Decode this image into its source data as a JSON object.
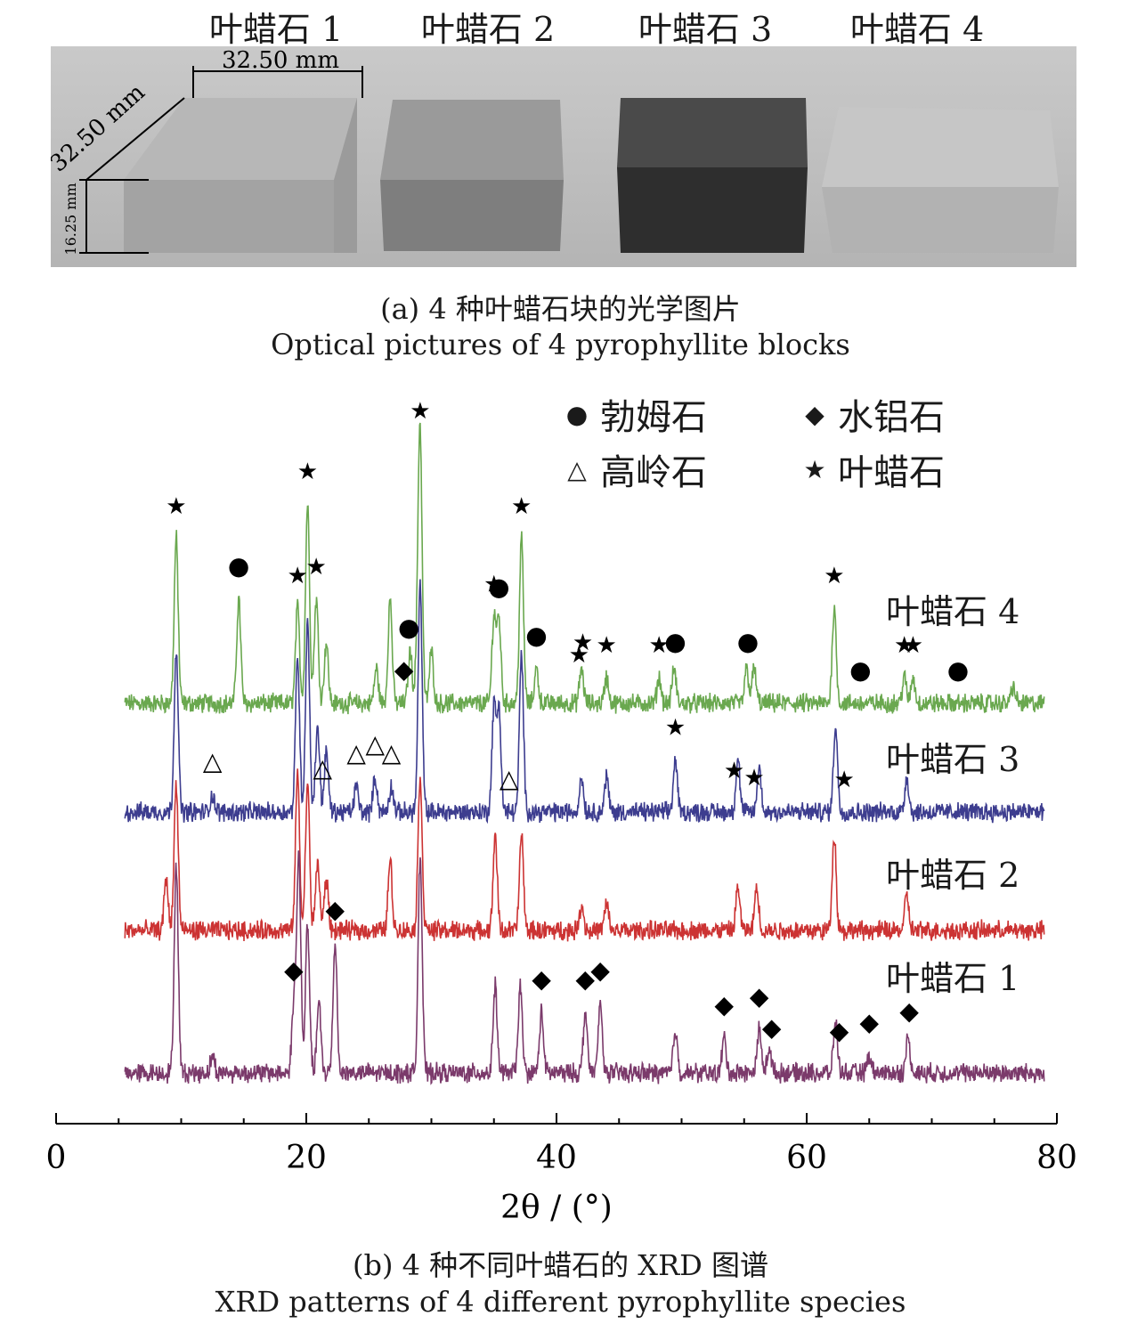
{
  "photo": {
    "block_labels": [
      "叶蜡石 1",
      "叶蜡石 2",
      "叶蜡石 3",
      "叶蜡石 4"
    ],
    "dimension_labels": [
      "32.50 mm",
      "32.50 mm",
      "16.25 mm"
    ],
    "caption_zh": "(a) 4 种叶蜡石块的光学图片",
    "caption_en": "Optical pictures of 4 pyrophyllite blocks",
    "block_colors": [
      "#aeaeae",
      "#8e8e8e",
      "#3a3a3a",
      "#bcbcbc"
    ]
  },
  "chart_data": {
    "type": "line",
    "xlabel": "2θ / (°)",
    "ylabel": "",
    "xlim": [
      0,
      80
    ],
    "x_ticks": [
      "0",
      "20",
      "40",
      "60",
      "80"
    ],
    "x_tick_values": [
      0,
      20,
      40,
      60,
      80
    ],
    "grid": false,
    "legend": [
      {
        "symbol": "●",
        "name": "勃姆石"
      },
      {
        "symbol": "◆",
        "name": "水铝石"
      },
      {
        "symbol": "△",
        "name": "高岭石"
      },
      {
        "symbol": "★",
        "name": "叶蜡石"
      }
    ],
    "series": [
      {
        "name": "叶蜡石 4",
        "color": "#6aa84f",
        "x_range": [
          5.5,
          79
        ],
        "peaks": [
          {
            "x": 9.6,
            "h": 0.95
          },
          {
            "x": 14.6,
            "h": 0.6
          },
          {
            "x": 19.3,
            "h": 0.55
          },
          {
            "x": 20.1,
            "h": 1.15
          },
          {
            "x": 20.8,
            "h": 0.6
          },
          {
            "x": 21.6,
            "h": 0.35
          },
          {
            "x": 25.6,
            "h": 0.2
          },
          {
            "x": 26.7,
            "h": 0.6
          },
          {
            "x": 28.3,
            "h": 0.3
          },
          {
            "x": 28.9,
            "h": 0.25
          },
          {
            "x": 29.1,
            "h": 1.5
          },
          {
            "x": 30.0,
            "h": 0.3
          },
          {
            "x": 35.0,
            "h": 0.5
          },
          {
            "x": 35.4,
            "h": 0.48
          },
          {
            "x": 37.2,
            "h": 0.95
          },
          {
            "x": 38.4,
            "h": 0.2
          },
          {
            "x": 42.0,
            "h": 0.2
          },
          {
            "x": 44.0,
            "h": 0.15
          },
          {
            "x": 48.2,
            "h": 0.15
          },
          {
            "x": 49.4,
            "h": 0.2
          },
          {
            "x": 55.2,
            "h": 0.2
          },
          {
            "x": 55.8,
            "h": 0.2
          },
          {
            "x": 62.2,
            "h": 0.55
          },
          {
            "x": 67.8,
            "h": 0.15
          },
          {
            "x": 68.5,
            "h": 0.15
          },
          {
            "x": 76.5,
            "h": 0.1
          }
        ]
      },
      {
        "name": "叶蜡石 3",
        "color": "#3d3d8f",
        "x_range": [
          5.5,
          79
        ],
        "peaks": [
          {
            "x": 9.6,
            "h": 0.95
          },
          {
            "x": 12.5,
            "h": 0.1
          },
          {
            "x": 19.3,
            "h": 0.9
          },
          {
            "x": 20.1,
            "h": 1.1
          },
          {
            "x": 20.9,
            "h": 0.5
          },
          {
            "x": 21.6,
            "h": 0.35
          },
          {
            "x": 24.0,
            "h": 0.15
          },
          {
            "x": 25.5,
            "h": 0.2
          },
          {
            "x": 26.8,
            "h": 0.15
          },
          {
            "x": 29.1,
            "h": 1.3
          },
          {
            "x": 35.0,
            "h": 0.6
          },
          {
            "x": 35.4,
            "h": 0.6
          },
          {
            "x": 37.2,
            "h": 0.9
          },
          {
            "x": 42.0,
            "h": 0.2
          },
          {
            "x": 44.0,
            "h": 0.2
          },
          {
            "x": 49.5,
            "h": 0.3
          },
          {
            "x": 54.5,
            "h": 0.3
          },
          {
            "x": 56.2,
            "h": 0.25
          },
          {
            "x": 62.3,
            "h": 0.5
          },
          {
            "x": 68.0,
            "h": 0.2
          }
        ]
      },
      {
        "name": "叶蜡石 2",
        "color": "#cc3333",
        "x_range": [
          5.5,
          79
        ],
        "peaks": [
          {
            "x": 8.8,
            "h": 0.3
          },
          {
            "x": 9.6,
            "h": 0.85
          },
          {
            "x": 19.3,
            "h": 0.9
          },
          {
            "x": 20.1,
            "h": 0.85
          },
          {
            "x": 20.9,
            "h": 0.4
          },
          {
            "x": 21.6,
            "h": 0.3
          },
          {
            "x": 26.7,
            "h": 0.4
          },
          {
            "x": 29.1,
            "h": 0.9
          },
          {
            "x": 35.1,
            "h": 0.55
          },
          {
            "x": 37.2,
            "h": 0.55
          },
          {
            "x": 42.0,
            "h": 0.15
          },
          {
            "x": 44.0,
            "h": 0.15
          },
          {
            "x": 54.5,
            "h": 0.25
          },
          {
            "x": 56.0,
            "h": 0.25
          },
          {
            "x": 62.2,
            "h": 0.55
          },
          {
            "x": 68.0,
            "h": 0.2
          }
        ]
      },
      {
        "name": "叶蜡石 1",
        "color": "#7b3a6b",
        "x_range": [
          5.5,
          79
        ],
        "peaks": [
          {
            "x": 9.6,
            "h": 1.2
          },
          {
            "x": 12.5,
            "h": 0.1
          },
          {
            "x": 19.0,
            "h": 0.4
          },
          {
            "x": 19.4,
            "h": 1.25
          },
          {
            "x": 20.1,
            "h": 0.85
          },
          {
            "x": 21.0,
            "h": 0.4
          },
          {
            "x": 22.3,
            "h": 0.75
          },
          {
            "x": 29.1,
            "h": 1.25
          },
          {
            "x": 35.1,
            "h": 0.5
          },
          {
            "x": 37.1,
            "h": 0.5
          },
          {
            "x": 38.8,
            "h": 0.35
          },
          {
            "x": 42.3,
            "h": 0.35
          },
          {
            "x": 43.5,
            "h": 0.4
          },
          {
            "x": 49.5,
            "h": 0.25
          },
          {
            "x": 53.4,
            "h": 0.2
          },
          {
            "x": 56.2,
            "h": 0.25
          },
          {
            "x": 57.0,
            "h": 0.15
          },
          {
            "x": 62.3,
            "h": 0.3
          },
          {
            "x": 65.0,
            "h": 0.1
          },
          {
            "x": 68.1,
            "h": 0.2
          }
        ]
      }
    ],
    "markers": [
      {
        "series": 0,
        "x": 9.6,
        "symbol": "★"
      },
      {
        "series": 0,
        "x": 14.6,
        "symbol": "●"
      },
      {
        "series": 0,
        "x": 19.3,
        "symbol": "★"
      },
      {
        "series": 0,
        "x": 20.1,
        "symbol": "★"
      },
      {
        "series": 0,
        "x": 20.8,
        "symbol": "★"
      },
      {
        "series": 0,
        "x": 27.8,
        "symbol": "◆"
      },
      {
        "series": 0,
        "x": 28.2,
        "symbol": "●"
      },
      {
        "series": 0,
        "x": 29.1,
        "symbol": "★"
      },
      {
        "series": 0,
        "x": 35.0,
        "symbol": "★"
      },
      {
        "series": 0,
        "x": 35.4,
        "symbol": "●"
      },
      {
        "series": 0,
        "x": 37.2,
        "symbol": "★"
      },
      {
        "series": 0,
        "x": 38.4,
        "symbol": "●"
      },
      {
        "series": 0,
        "x": 41.8,
        "symbol": "★"
      },
      {
        "series": 0,
        "x": 42.1,
        "symbol": "★"
      },
      {
        "series": 0,
        "x": 44.0,
        "symbol": "★"
      },
      {
        "series": 0,
        "x": 48.2,
        "symbol": "★"
      },
      {
        "series": 0,
        "x": 49.5,
        "symbol": "●"
      },
      {
        "series": 0,
        "x": 55.3,
        "symbol": "●"
      },
      {
        "series": 0,
        "x": 62.2,
        "symbol": "★"
      },
      {
        "series": 0,
        "x": 64.3,
        "symbol": "●"
      },
      {
        "series": 0,
        "x": 67.8,
        "symbol": "★"
      },
      {
        "series": 0,
        "x": 68.5,
        "symbol": "★"
      },
      {
        "series": 0,
        "x": 72.1,
        "symbol": "●"
      },
      {
        "series": 1,
        "x": 12.5,
        "symbol": "△"
      },
      {
        "series": 1,
        "x": 21.3,
        "symbol": "△"
      },
      {
        "series": 1,
        "x": 24.0,
        "symbol": "△"
      },
      {
        "series": 1,
        "x": 25.5,
        "symbol": "△"
      },
      {
        "series": 1,
        "x": 26.8,
        "symbol": "△"
      },
      {
        "series": 1,
        "x": 36.2,
        "symbol": "△"
      },
      {
        "series": 1,
        "x": 49.5,
        "symbol": "★"
      },
      {
        "series": 1,
        "x": 54.2,
        "symbol": "★"
      },
      {
        "series": 1,
        "x": 55.8,
        "symbol": "★"
      },
      {
        "series": 1,
        "x": 63.0,
        "symbol": "★"
      },
      {
        "series": 3,
        "x": 19.0,
        "symbol": "◆"
      },
      {
        "series": 3,
        "x": 22.3,
        "symbol": "◆"
      },
      {
        "series": 3,
        "x": 38.8,
        "symbol": "◆"
      },
      {
        "series": 3,
        "x": 42.3,
        "symbol": "◆"
      },
      {
        "series": 3,
        "x": 43.5,
        "symbol": "◆"
      },
      {
        "series": 3,
        "x": 53.4,
        "symbol": "◆"
      },
      {
        "series": 3,
        "x": 56.2,
        "symbol": "◆"
      },
      {
        "series": 3,
        "x": 57.2,
        "symbol": "◆"
      },
      {
        "series": 3,
        "x": 62.6,
        "symbol": "◆"
      },
      {
        "series": 3,
        "x": 65.0,
        "symbol": "◆"
      },
      {
        "series": 3,
        "x": 68.2,
        "symbol": "◆"
      }
    ],
    "caption_zh": "(b) 4 种不同叶蜡石的 XRD 图谱",
    "caption_en": "XRD patterns of 4 different pyrophyllite species"
  }
}
